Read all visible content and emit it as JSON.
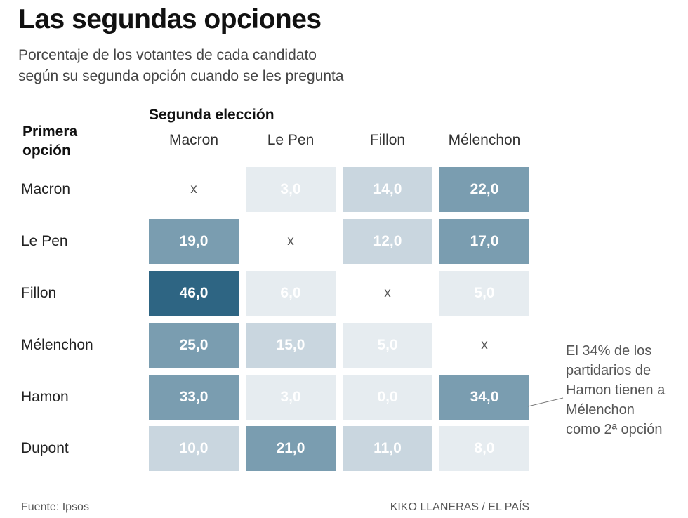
{
  "title": "Las segundas opciones",
  "subtitle": [
    "Porcentaje de los votantes de cada candidato",
    "según su segunda opción cuando se les pregunta"
  ],
  "row_header": [
    "Primera",
    "opción"
  ],
  "col_header": "Segunda elección",
  "chart_data": {
    "type": "heatmap",
    "title": "Las segundas opciones",
    "columns": [
      "Macron",
      "Le Pen",
      "Fillon",
      "Mélenchon"
    ],
    "rows": [
      "Macron",
      "Le Pen",
      "Fillon",
      "Mélenchon",
      "Hamon",
      "Dupont"
    ],
    "values": [
      [
        null,
        3.0,
        14.0,
        22.0
      ],
      [
        19.0,
        null,
        12.0,
        17.0
      ],
      [
        46.0,
        6.0,
        null,
        5.0
      ],
      [
        25.0,
        15.0,
        5.0,
        null
      ],
      [
        33.0,
        3.0,
        0.0,
        34.0
      ],
      [
        10.0,
        21.0,
        11.0,
        8.0
      ]
    ],
    "labels": [
      [
        "x",
        "3,0",
        "14,0",
        "22,0"
      ],
      [
        "19,0",
        "x",
        "12,0",
        "17,0"
      ],
      [
        "46,0",
        "6,0",
        "x",
        "5,0"
      ],
      [
        "25,0",
        "15,0",
        "5,0",
        "x"
      ],
      [
        "33,0",
        "3,0",
        "0,0",
        "34,0"
      ],
      [
        "10,0",
        "21,0",
        "11,0",
        "8,0"
      ]
    ],
    "colors": {
      "dark": "#2e6583",
      "mid": "#7a9db0",
      "light": "#c9d6df",
      "lightest": "#e6ecf0"
    }
  },
  "annotation": [
    "El 34% de los",
    "partidarios de",
    "Hamon tienen a",
    "Mélenchon",
    "como 2ª opción"
  ],
  "footer": {
    "source": "Fuente: Ipsos",
    "credit": "KIKO LLANERAS / EL PAÍS"
  }
}
